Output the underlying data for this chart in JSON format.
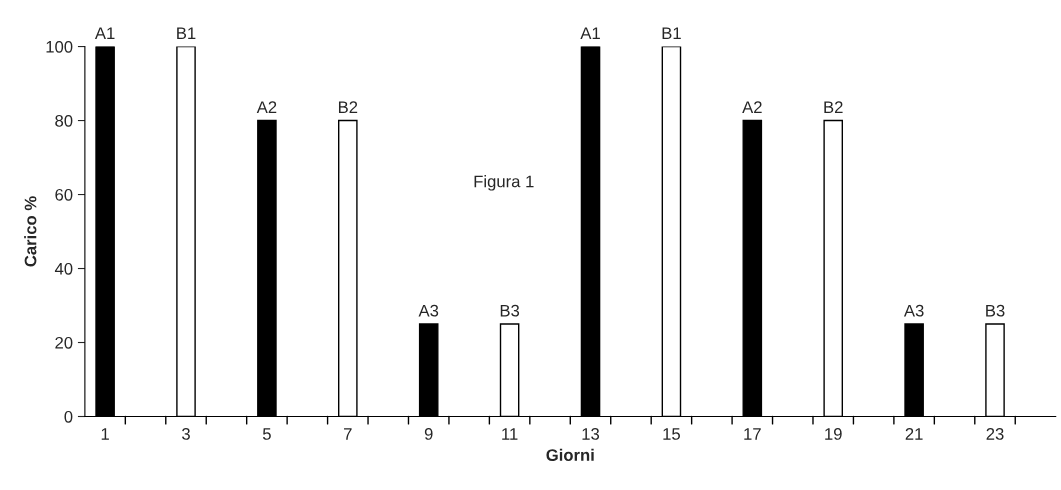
{
  "chart_data": {
    "type": "bar",
    "xlabel": "Giorni",
    "ylabel": "Carico %",
    "categories": [
      "1",
      null,
      "3",
      null,
      "5",
      null,
      "7",
      null,
      "9",
      null,
      "11",
      null,
      "13",
      null,
      "15",
      null,
      "17",
      null,
      "19",
      null,
      "21",
      null,
      "23",
      null
    ],
    "values": [
      100,
      null,
      100,
      null,
      80,
      null,
      80,
      null,
      25,
      null,
      25,
      null,
      100,
      null,
      100,
      null,
      80,
      null,
      80,
      null,
      25,
      null,
      25,
      null
    ],
    "colors": [
      "#000000",
      null,
      "#ffffff",
      null,
      "#000000",
      null,
      "#ffffff",
      null,
      "#000000",
      null,
      "#ffffff",
      null,
      "#000000",
      null,
      "#ffffff",
      null,
      "#000000",
      null,
      "#ffffff",
      null,
      "#000000",
      null,
      "#ffffff",
      null
    ],
    "value_labels": [
      "A1",
      null,
      "B1",
      null,
      "A2",
      null,
      "B2",
      null,
      "A3",
      null,
      "B3",
      null,
      "A1",
      null,
      "B1",
      null,
      "A2",
      null,
      "B2",
      null,
      "A3",
      null,
      "B3",
      null
    ],
    "ylim": [
      0,
      100
    ],
    "yticks": [
      0,
      20,
      40,
      60,
      80,
      100
    ],
    "annotations": [
      "Figura 1"
    ],
    "grid": false,
    "legend": false
  }
}
